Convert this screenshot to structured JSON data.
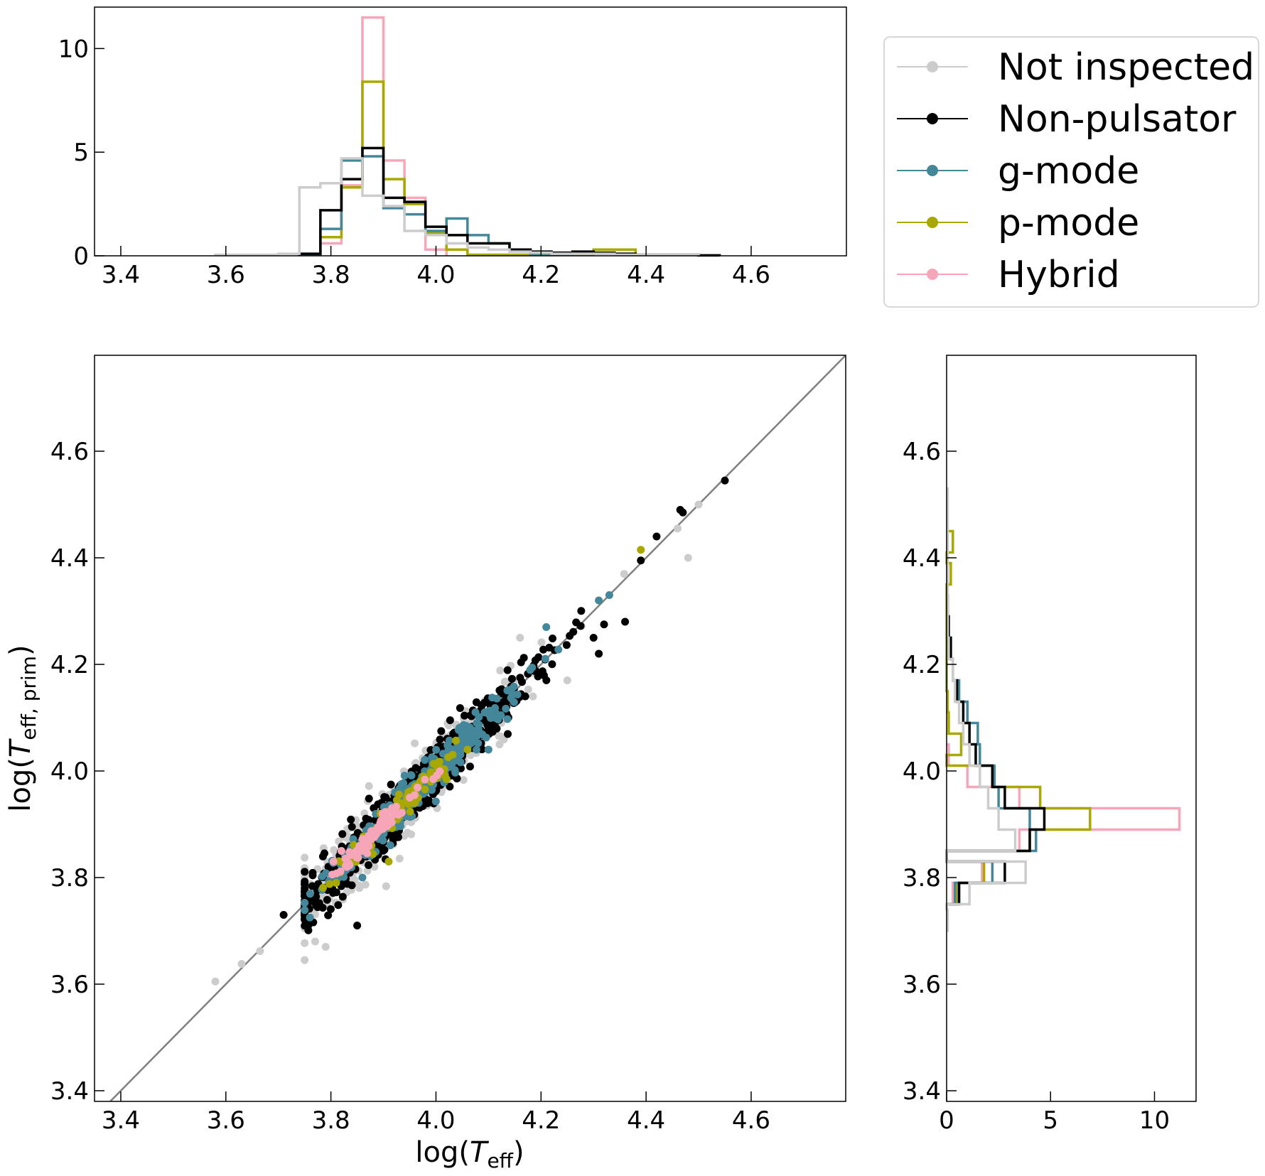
{
  "chart_data": {
    "type": "scatter",
    "xlabel": "log(T_eff)",
    "ylabel": "log(T_eff, prim)",
    "xlim": [
      3.35,
      4.78
    ],
    "ylim": [
      3.38,
      4.78
    ],
    "xticks": [
      "3.4",
      "3.6",
      "3.8",
      "4.0",
      "4.2",
      "4.4",
      "4.6"
    ],
    "yticks": [
      "3.4",
      "3.6",
      "3.8",
      "4.0",
      "4.2",
      "4.4",
      "4.6"
    ],
    "reference_line": "y = x",
    "legend": {
      "position": "top-right",
      "entries": [
        {
          "label": "Not inspected",
          "color": "#cccccc"
        },
        {
          "label": "Non-pulsator",
          "color": "#000000"
        },
        {
          "label": "g-mode",
          "color": "#44879a"
        },
        {
          "label": "p-mode",
          "color": "#a8a800"
        },
        {
          "label": "Hybrid",
          "color": "#f6a6b8"
        }
      ]
    },
    "top_histogram": {
      "orientation": "vertical",
      "yticks": [
        "0",
        "5",
        "10"
      ],
      "ylim": [
        0,
        12
      ],
      "bin_width": 0.04,
      "series": [
        {
          "name": "Hybrid",
          "color": "#f6a6b8",
          "bins": [
            [
              3.78,
              0.6
            ],
            [
              3.82,
              3.4
            ],
            [
              3.86,
              11.5
            ],
            [
              3.9,
              4.6
            ],
            [
              3.94,
              2.8
            ],
            [
              3.98,
              0.3
            ]
          ]
        },
        {
          "name": "p-mode",
          "color": "#a8a800",
          "bins": [
            [
              3.78,
              0.9
            ],
            [
              3.82,
              3.3
            ],
            [
              3.86,
              8.4
            ],
            [
              3.9,
              3.7
            ],
            [
              3.94,
              2.5
            ],
            [
              3.98,
              1.1
            ],
            [
              4.02,
              0.3
            ],
            [
              4.06,
              0.05
            ],
            [
              4.1,
              0.05
            ],
            [
              4.14,
              0.05
            ],
            [
              4.18,
              0.05
            ],
            [
              4.22,
              0.05
            ],
            [
              4.26,
              0.05
            ],
            [
              4.3,
              0.3
            ],
            [
              4.34,
              0.3
            ]
          ]
        },
        {
          "name": "g-mode",
          "color": "#44879a",
          "bins": [
            [
              3.74,
              0.05
            ],
            [
              3.78,
              1.3
            ],
            [
              3.82,
              4.6
            ],
            [
              3.86,
              4.8
            ],
            [
              3.9,
              2.3
            ],
            [
              3.94,
              2.0
            ],
            [
              3.98,
              1.2
            ],
            [
              4.02,
              1.8
            ],
            [
              4.06,
              1.0
            ],
            [
              4.1,
              0.6
            ],
            [
              4.14,
              0.3
            ],
            [
              4.18,
              0.1
            ],
            [
              4.22,
              0.05
            ],
            [
              4.26,
              0.1
            ],
            [
              4.3,
              0.1
            ]
          ]
        },
        {
          "name": "Non-pulsator",
          "color": "#000000",
          "bins": [
            [
              3.74,
              0.1
            ],
            [
              3.78,
              2.2
            ],
            [
              3.82,
              3.7
            ],
            [
              3.86,
              5.2
            ],
            [
              3.9,
              2.8
            ],
            [
              3.94,
              2.6
            ],
            [
              3.98,
              1.4
            ],
            [
              4.02,
              1.0
            ],
            [
              4.06,
              0.6
            ],
            [
              4.1,
              0.6
            ],
            [
              4.14,
              0.3
            ],
            [
              4.18,
              0.2
            ],
            [
              4.22,
              0.15
            ],
            [
              4.26,
              0.2
            ],
            [
              4.3,
              0.15
            ],
            [
              4.34,
              0.1
            ],
            [
              4.38,
              0.05
            ],
            [
              4.42,
              0.05
            ],
            [
              4.46,
              0.05
            ],
            [
              4.5,
              0.02
            ]
          ]
        },
        {
          "name": "Not inspected",
          "color": "#cccccc",
          "bins": [
            [
              3.58,
              0.05
            ],
            [
              3.62,
              0.05
            ],
            [
              3.66,
              0.05
            ],
            [
              3.7,
              0.1
            ],
            [
              3.74,
              3.3
            ],
            [
              3.78,
              3.5
            ],
            [
              3.82,
              4.7
            ],
            [
              3.86,
              2.9
            ],
            [
              3.9,
              2.4
            ],
            [
              3.94,
              1.2
            ],
            [
              3.98,
              1.0
            ],
            [
              4.02,
              0.6
            ],
            [
              4.06,
              0.4
            ],
            [
              4.1,
              0.3
            ],
            [
              4.14,
              0.2
            ],
            [
              4.18,
              0.15
            ],
            [
              4.22,
              0.1
            ],
            [
              4.26,
              0.1
            ],
            [
              4.3,
              0.1
            ],
            [
              4.34,
              0.05
            ],
            [
              4.38,
              0.05
            ],
            [
              4.42,
              0.05
            ],
            [
              4.46,
              0.05
            ]
          ]
        }
      ]
    },
    "right_histogram": {
      "orientation": "horizontal",
      "xticks": [
        "0",
        "5",
        "10"
      ],
      "xlim": [
        0,
        12
      ],
      "bin_width": 0.04,
      "series": [
        {
          "name": "Hybrid",
          "color": "#f6a6b8",
          "bins": [
            [
              3.75,
              0.3
            ],
            [
              3.79,
              1.7
            ],
            [
              3.85,
              3.5
            ],
            [
              3.89,
              11.2
            ],
            [
              3.93,
              3.5
            ],
            [
              3.97,
              1.0
            ],
            [
              4.01,
              0.1
            ]
          ]
        },
        {
          "name": "p-mode",
          "color": "#a8a800",
          "bins": [
            [
              3.75,
              0.5
            ],
            [
              3.79,
              1.8
            ],
            [
              3.85,
              4.0
            ],
            [
              3.89,
              6.9
            ],
            [
              3.93,
              4.5
            ],
            [
              3.97,
              2.2
            ],
            [
              4.03,
              0.7
            ],
            [
              4.07,
              0.1
            ],
            [
              4.11,
              0.05
            ],
            [
              4.35,
              0.2
            ],
            [
              4.41,
              0.3
            ]
          ]
        },
        {
          "name": "g-mode",
          "color": "#44879a",
          "bins": [
            [
              3.75,
              0.4
            ],
            [
              3.79,
              2.2
            ],
            [
              3.85,
              4.3
            ],
            [
              3.89,
              4.0
            ],
            [
              3.93,
              2.5
            ],
            [
              3.97,
              2.3
            ],
            [
              4.01,
              1.6
            ],
            [
              4.05,
              1.5
            ],
            [
              4.09,
              1.0
            ],
            [
              4.13,
              0.6
            ],
            [
              4.17,
              0.3
            ],
            [
              4.21,
              0.2
            ],
            [
              4.25,
              0.1
            ]
          ]
        },
        {
          "name": "Non-pulsator",
          "color": "#000000",
          "bins": [
            [
              3.75,
              0.6
            ],
            [
              3.79,
              2.8
            ],
            [
              3.85,
              4.0
            ],
            [
              3.89,
              4.7
            ],
            [
              3.93,
              2.8
            ],
            [
              3.97,
              2.2
            ],
            [
              4.01,
              1.4
            ],
            [
              4.05,
              1.1
            ],
            [
              4.09,
              0.8
            ],
            [
              4.13,
              0.5
            ],
            [
              4.17,
              0.3
            ],
            [
              4.21,
              0.2
            ],
            [
              4.25,
              0.1
            ],
            [
              4.29,
              0.05
            ]
          ]
        },
        {
          "name": "Not inspected",
          "color": "#cccccc",
          "bins": [
            [
              3.7,
              0.05
            ],
            [
              3.75,
              1.1
            ],
            [
              3.79,
              3.8
            ],
            [
              3.85,
              3.3
            ],
            [
              3.89,
              2.5
            ],
            [
              3.93,
              2.0
            ],
            [
              3.97,
              1.6
            ],
            [
              4.01,
              1.1
            ],
            [
              4.05,
              0.8
            ],
            [
              4.09,
              0.6
            ],
            [
              4.13,
              0.4
            ],
            [
              4.17,
              0.3
            ],
            [
              4.21,
              0.1
            ],
            [
              4.25,
              0.05
            ],
            [
              4.29,
              0.05
            ],
            [
              4.33,
              0.05
            ],
            [
              4.37,
              0.05
            ],
            [
              4.41,
              0.05
            ],
            [
              4.45,
              0.05
            ],
            [
              4.49,
              0.05
            ]
          ]
        }
      ]
    },
    "scatter": {
      "random_seed": 7,
      "series": [
        {
          "name": "Not inspected",
          "color": "#cccccc",
          "cluster": {
            "n": 520,
            "center": 3.93,
            "spread": 0.11,
            "noise": 0.03
          },
          "points": [
            [
              3.58,
              3.605
            ],
            [
              3.63,
              3.638
            ],
            [
              3.665,
              3.662
            ],
            [
              3.77,
              3.68
            ],
            [
              3.79,
              3.67
            ],
            [
              4.46,
              4.455
            ],
            [
              4.48,
              4.4
            ],
            [
              4.5,
              4.5
            ],
            [
              4.25,
              4.17
            ],
            [
              4.16,
              4.25
            ]
          ]
        },
        {
          "name": "Non-pulsator",
          "color": "#000000",
          "cluster": {
            "n": 620,
            "center": 3.95,
            "spread": 0.12,
            "noise": 0.025
          },
          "points": [
            [
              3.71,
              3.73
            ],
            [
              3.76,
              3.72
            ],
            [
              3.85,
              3.71
            ],
            [
              4.55,
              4.545
            ],
            [
              4.465,
              4.49
            ],
            [
              4.47,
              4.485
            ],
            [
              4.39,
              4.395
            ],
            [
              4.42,
              4.44
            ],
            [
              4.3,
              4.25
            ],
            [
              4.36,
              4.28
            ],
            [
              4.32,
              4.275
            ],
            [
              4.31,
              4.22
            ],
            [
              4.13,
              4.12
            ],
            [
              4.17,
              4.14
            ]
          ]
        },
        {
          "name": "g-mode",
          "color": "#44879a",
          "cluster": {
            "n": 320,
            "center": 3.97,
            "spread": 0.09,
            "noise": 0.018
          },
          "points": [
            [
              3.76,
              3.725
            ],
            [
              4.21,
              4.27
            ],
            [
              4.33,
              4.33
            ],
            [
              4.31,
              4.32
            ],
            [
              4.1,
              4.04
            ],
            [
              3.86,
              3.8
            ]
          ]
        },
        {
          "name": "p-mode",
          "color": "#a8a800",
          "cluster": {
            "n": 90,
            "center": 3.93,
            "spread": 0.06,
            "noise": 0.012
          },
          "points": [
            [
              4.39,
              4.415
            ],
            [
              4.02,
              3.985
            ],
            [
              4.06,
              4.04
            ],
            [
              3.81,
              3.79
            ],
            [
              3.91,
              3.83
            ],
            [
              3.96,
              3.94
            ]
          ]
        },
        {
          "name": "Hybrid",
          "color": "#f6a6b8",
          "cluster": {
            "n": 80,
            "center": 3.89,
            "spread": 0.04,
            "noise": 0.008
          },
          "points": [
            [
              3.805,
              3.83
            ],
            [
              3.82,
              3.85
            ],
            [
              3.95,
              3.95
            ]
          ]
        }
      ]
    }
  }
}
